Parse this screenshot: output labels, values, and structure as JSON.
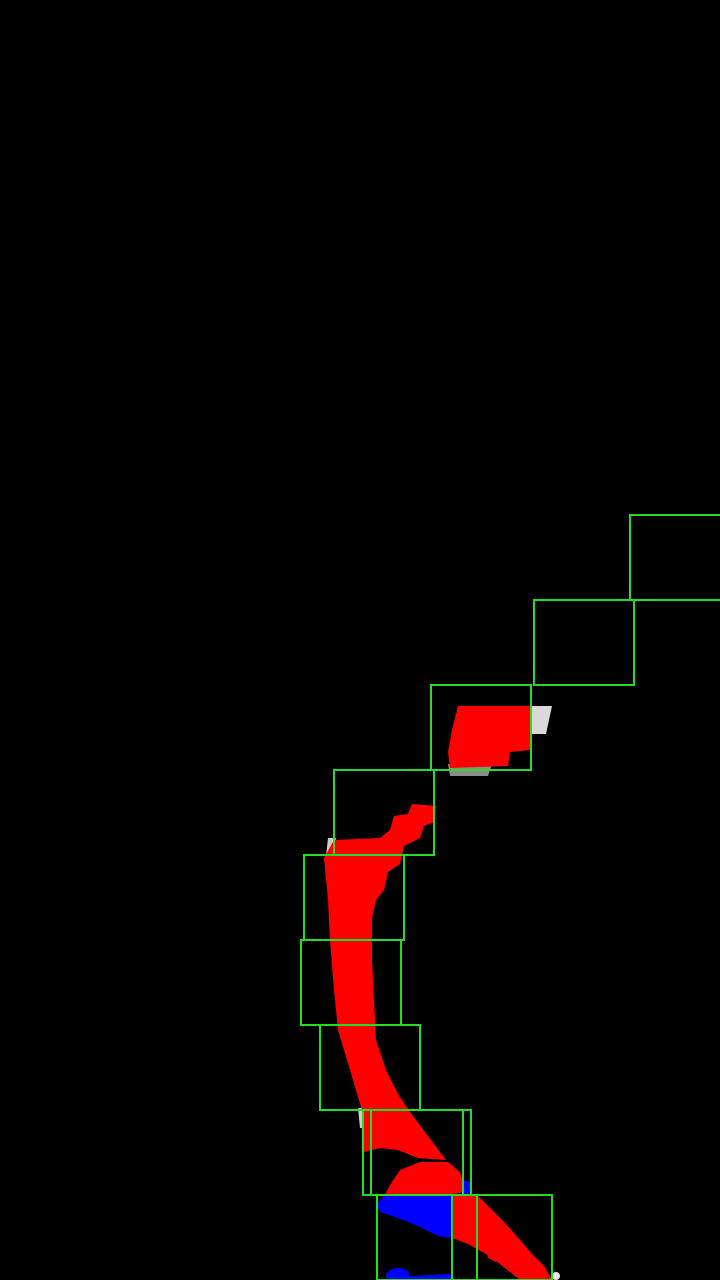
{
  "colors": {
    "background": "#000000",
    "box": "#22dd22",
    "mask_primary": "#ff0000",
    "mask_secondary": "#0000ff",
    "highlight": "#ffffff"
  },
  "legend": {
    "box_meaning": "detection-box",
    "red_meaning": "segmentation-mask-class-a",
    "blue_meaning": "segmentation-mask-class-b"
  }
}
